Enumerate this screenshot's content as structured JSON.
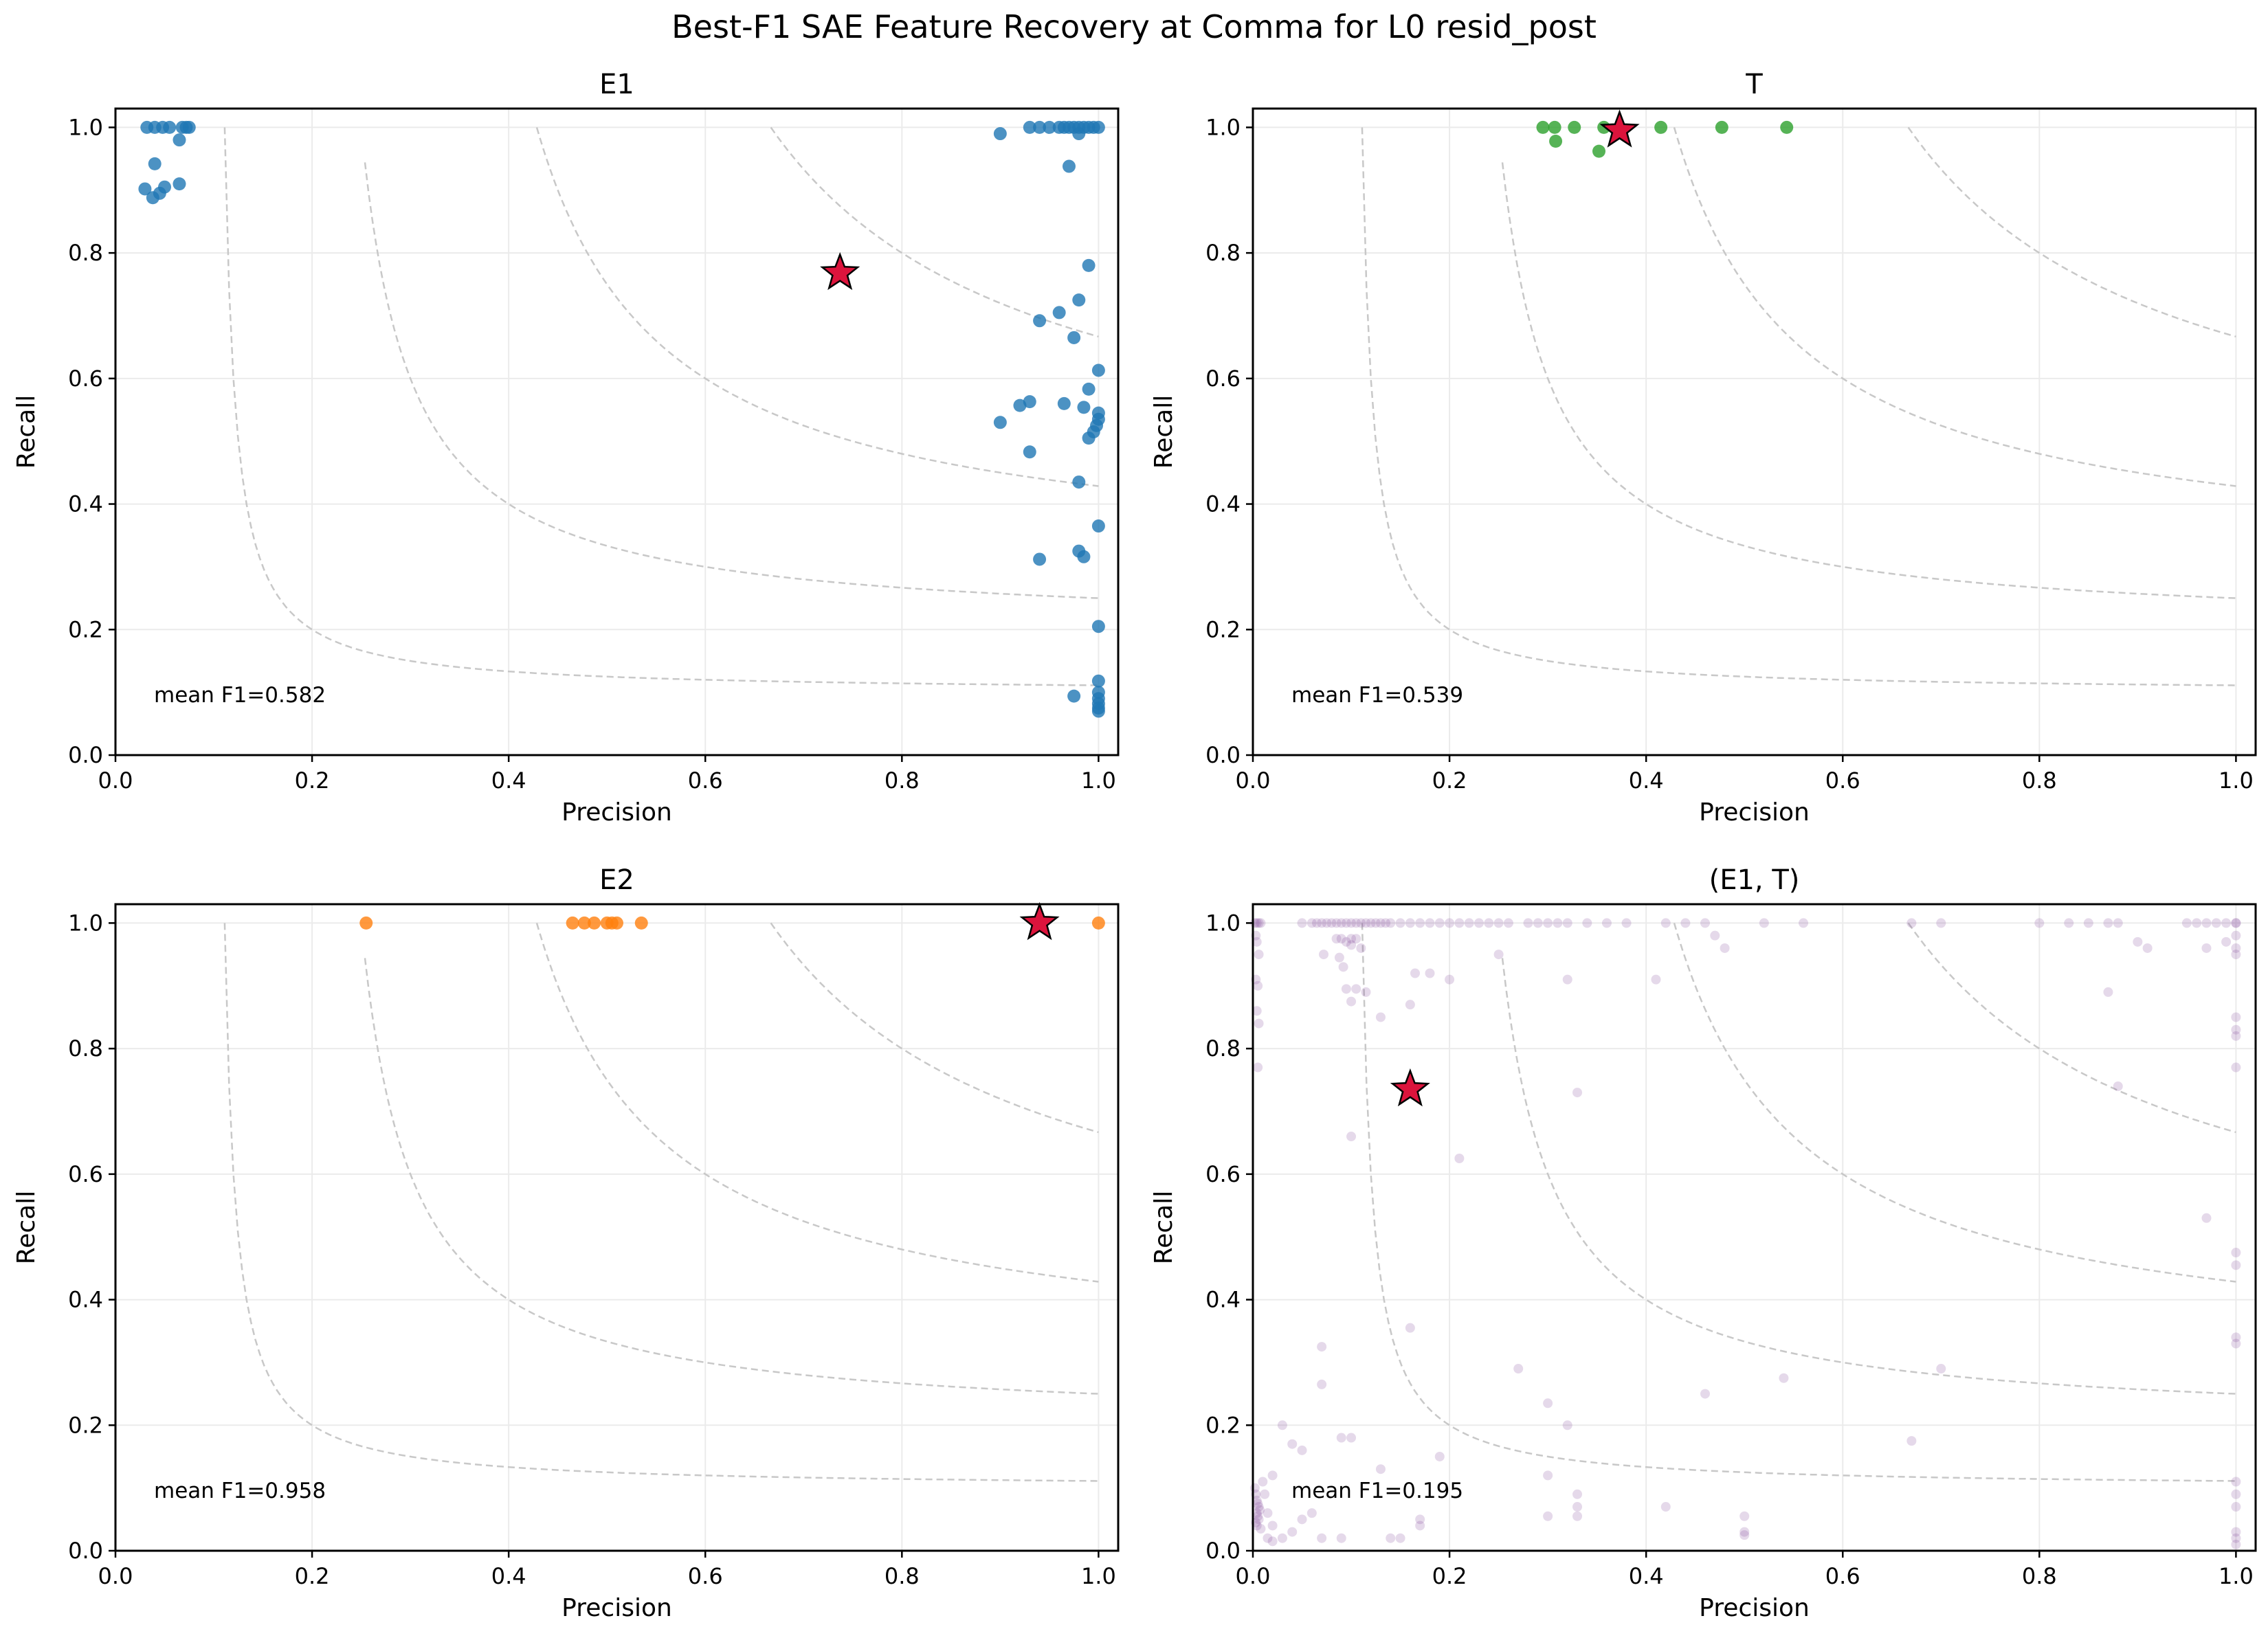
{
  "figure": {
    "title": "Best-F1 SAE Feature Recovery at Comma for L0 resid_post"
  },
  "chart_data": [
    {
      "type": "scatter",
      "title": "E1",
      "xlabel": "Precision",
      "ylabel": "Recall",
      "xlim": [
        0,
        1.02
      ],
      "ylim": [
        0,
        1.03
      ],
      "grid": true,
      "xticks": [
        "0.0",
        "0.2",
        "0.4",
        "0.6",
        "0.8",
        "1.0"
      ],
      "yticks": [
        "0.0",
        "0.2",
        "0.4",
        "0.6",
        "0.8",
        "1.0"
      ],
      "color": "#1f77b4",
      "alpha": 0.8,
      "iso_f1": [
        0.2,
        0.4,
        0.6,
        0.8
      ],
      "annotation": "mean F1=0.582",
      "best": [
        0.737,
        0.768
      ],
      "points": [
        [
          0.032,
          1.0
        ],
        [
          0.04,
          1.0
        ],
        [
          0.048,
          1.0
        ],
        [
          0.055,
          1.0
        ],
        [
          0.068,
          1.0
        ],
        [
          0.072,
          1.0
        ],
        [
          0.075,
          1.0
        ],
        [
          0.065,
          0.98
        ],
        [
          0.04,
          0.942
        ],
        [
          0.03,
          0.902
        ],
        [
          0.038,
          0.888
        ],
        [
          0.045,
          0.895
        ],
        [
          0.05,
          0.905
        ],
        [
          0.065,
          0.91
        ],
        [
          0.9,
          0.99
        ],
        [
          0.93,
          1.0
        ],
        [
          0.94,
          1.0
        ],
        [
          0.95,
          1.0
        ],
        [
          0.96,
          1.0
        ],
        [
          0.965,
          1.0
        ],
        [
          0.97,
          1.0
        ],
        [
          0.975,
          1.0
        ],
        [
          0.98,
          1.0
        ],
        [
          0.985,
          1.0
        ],
        [
          0.99,
          1.0
        ],
        [
          0.995,
          1.0
        ],
        [
          1.0,
          1.0
        ],
        [
          0.98,
          0.99
        ],
        [
          0.97,
          0.938
        ],
        [
          0.99,
          0.78
        ],
        [
          0.98,
          0.725
        ],
        [
          0.96,
          0.705
        ],
        [
          0.94,
          0.692
        ],
        [
          0.975,
          0.665
        ],
        [
          1.0,
          0.613
        ],
        [
          0.99,
          0.583
        ],
        [
          0.93,
          0.563
        ],
        [
          0.92,
          0.557
        ],
        [
          0.965,
          0.56
        ],
        [
          0.985,
          0.554
        ],
        [
          1.0,
          0.545
        ],
        [
          1.0,
          0.535
        ],
        [
          0.998,
          0.525
        ],
        [
          0.995,
          0.515
        ],
        [
          0.99,
          0.505
        ],
        [
          0.9,
          0.53
        ],
        [
          0.93,
          0.483
        ],
        [
          0.98,
          0.435
        ],
        [
          1.0,
          0.365
        ],
        [
          0.98,
          0.325
        ],
        [
          0.94,
          0.312
        ],
        [
          0.985,
          0.316
        ],
        [
          1.0,
          0.205
        ],
        [
          1.0,
          0.118
        ],
        [
          0.975,
          0.094
        ],
        [
          1.0,
          0.1
        ],
        [
          1.0,
          0.09
        ],
        [
          1.0,
          0.082
        ],
        [
          1.0,
          0.075
        ],
        [
          1.0,
          0.07
        ]
      ]
    },
    {
      "type": "scatter",
      "title": "T",
      "xlabel": "Precision",
      "ylabel": "Recall",
      "xlim": [
        0,
        1.02
      ],
      "ylim": [
        0,
        1.03
      ],
      "grid": true,
      "xticks": [
        "0.0",
        "0.2",
        "0.4",
        "0.6",
        "0.8",
        "1.0"
      ],
      "yticks": [
        "0.0",
        "0.2",
        "0.4",
        "0.6",
        "0.8",
        "1.0"
      ],
      "color": "#2ca02c",
      "alpha": 0.8,
      "iso_f1": [
        0.2,
        0.4,
        0.6,
        0.8
      ],
      "annotation": "mean F1=0.539",
      "best": [
        0.373,
        0.995
      ],
      "points": [
        [
          0.295,
          1.0
        ],
        [
          0.307,
          1.0
        ],
        [
          0.327,
          1.0
        ],
        [
          0.357,
          1.0
        ],
        [
          0.415,
          1.0
        ],
        [
          0.477,
          1.0
        ],
        [
          0.543,
          1.0
        ],
        [
          0.308,
          0.978
        ],
        [
          0.352,
          0.962
        ]
      ]
    },
    {
      "type": "scatter",
      "title": "E2",
      "xlabel": "Precision",
      "ylabel": "Recall",
      "xlim": [
        0,
        1.02
      ],
      "ylim": [
        0,
        1.03
      ],
      "grid": true,
      "xticks": [
        "0.0",
        "0.2",
        "0.4",
        "0.6",
        "0.8",
        "1.0"
      ],
      "yticks": [
        "0.0",
        "0.2",
        "0.4",
        "0.6",
        "0.8",
        "1.0"
      ],
      "color": "#ff7f0e",
      "alpha": 0.8,
      "iso_f1": [
        0.2,
        0.4,
        0.6,
        0.8
      ],
      "annotation": "mean F1=0.958",
      "best": [
        0.94,
        1.0
      ],
      "points": [
        [
          0.255,
          1.0
        ],
        [
          0.465,
          1.0
        ],
        [
          0.477,
          1.0
        ],
        [
          0.487,
          1.0
        ],
        [
          0.5,
          1.0
        ],
        [
          0.505,
          1.0
        ],
        [
          0.51,
          1.0
        ],
        [
          0.535,
          1.0
        ],
        [
          1.0,
          1.0
        ]
      ]
    },
    {
      "type": "scatter",
      "title": "(E1, T)",
      "xlabel": "Precision",
      "ylabel": "Recall",
      "xlim": [
        0,
        1.02
      ],
      "ylim": [
        0,
        1.03
      ],
      "grid": true,
      "xticks": [
        "0.0",
        "0.2",
        "0.4",
        "0.6",
        "0.8",
        "1.0"
      ],
      "yticks": [
        "0.0",
        "0.2",
        "0.4",
        "0.6",
        "0.8",
        "1.0"
      ],
      "color": "#7b3f95",
      "alpha": 0.2,
      "iso_f1": [
        0.2,
        0.4,
        0.6,
        0.8
      ],
      "annotation": "mean F1=0.195",
      "best": [
        0.16,
        0.735
      ],
      "points": [
        [
          0.002,
          1.0
        ],
        [
          0.004,
          1.0
        ],
        [
          0.006,
          1.0
        ],
        [
          0.008,
          1.0
        ],
        [
          0.05,
          1.0
        ],
        [
          0.06,
          1.0
        ],
        [
          0.065,
          1.0
        ],
        [
          0.07,
          1.0
        ],
        [
          0.075,
          1.0
        ],
        [
          0.08,
          1.0
        ],
        [
          0.085,
          1.0
        ],
        [
          0.09,
          1.0
        ],
        [
          0.095,
          1.0
        ],
        [
          0.1,
          1.0
        ],
        [
          0.105,
          1.0
        ],
        [
          0.11,
          1.0
        ],
        [
          0.115,
          1.0
        ],
        [
          0.12,
          1.0
        ],
        [
          0.125,
          1.0
        ],
        [
          0.13,
          1.0
        ],
        [
          0.135,
          1.0
        ],
        [
          0.14,
          1.0
        ],
        [
          0.15,
          1.0
        ],
        [
          0.16,
          1.0
        ],
        [
          0.17,
          1.0
        ],
        [
          0.18,
          1.0
        ],
        [
          0.19,
          1.0
        ],
        [
          0.2,
          1.0
        ],
        [
          0.21,
          1.0
        ],
        [
          0.22,
          1.0
        ],
        [
          0.23,
          1.0
        ],
        [
          0.24,
          1.0
        ],
        [
          0.25,
          1.0
        ],
        [
          0.26,
          1.0
        ],
        [
          0.28,
          1.0
        ],
        [
          0.29,
          1.0
        ],
        [
          0.3,
          1.0
        ],
        [
          0.31,
          1.0
        ],
        [
          0.32,
          1.0
        ],
        [
          0.34,
          1.0
        ],
        [
          0.36,
          1.0
        ],
        [
          0.38,
          1.0
        ],
        [
          0.42,
          1.0
        ],
        [
          0.44,
          1.0
        ],
        [
          0.46,
          1.0
        ],
        [
          0.52,
          1.0
        ],
        [
          0.56,
          1.0
        ],
        [
          0.67,
          1.0
        ],
        [
          0.7,
          1.0
        ],
        [
          0.8,
          1.0
        ],
        [
          0.83,
          1.0
        ],
        [
          0.85,
          1.0
        ],
        [
          0.87,
          1.0
        ],
        [
          0.88,
          1.0
        ],
        [
          0.95,
          1.0
        ],
        [
          0.96,
          1.0
        ],
        [
          0.97,
          1.0
        ],
        [
          0.98,
          1.0
        ],
        [
          0.99,
          1.0
        ],
        [
          1.0,
          1.0
        ],
        [
          1.0,
          1.0
        ],
        [
          0.003,
          0.98
        ],
        [
          0.004,
          0.97
        ],
        [
          0.006,
          0.95
        ],
        [
          0.003,
          0.91
        ],
        [
          0.005,
          0.9
        ],
        [
          0.004,
          0.86
        ],
        [
          0.006,
          0.84
        ],
        [
          0.005,
          0.77
        ],
        [
          0.085,
          0.975
        ],
        [
          0.09,
          0.975
        ],
        [
          0.095,
          0.97
        ],
        [
          0.1,
          0.975
        ],
        [
          0.105,
          0.975
        ],
        [
          0.1,
          0.965
        ],
        [
          0.072,
          0.95
        ],
        [
          0.088,
          0.945
        ],
        [
          0.092,
          0.93
        ],
        [
          0.11,
          0.96
        ],
        [
          0.095,
          0.895
        ],
        [
          0.1,
          0.875
        ],
        [
          0.105,
          0.895
        ],
        [
          0.115,
          0.89
        ],
        [
          0.13,
          0.85
        ],
        [
          0.165,
          0.92
        ],
        [
          0.18,
          0.92
        ],
        [
          0.25,
          0.95
        ],
        [
          0.2,
          0.91
        ],
        [
          0.32,
          0.91
        ],
        [
          0.16,
          0.87
        ],
        [
          0.41,
          0.91
        ],
        [
          0.47,
          0.98
        ],
        [
          0.48,
          0.96
        ],
        [
          0.9,
          0.97
        ],
        [
          0.91,
          0.96
        ],
        [
          0.97,
          0.96
        ],
        [
          0.99,
          0.97
        ],
        [
          1.0,
          0.98
        ],
        [
          1.0,
          0.96
        ],
        [
          1.0,
          0.95
        ],
        [
          0.87,
          0.89
        ],
        [
          1.0,
          0.85
        ],
        [
          1.0,
          0.83
        ],
        [
          1.0,
          0.82
        ],
        [
          1.0,
          0.77
        ],
        [
          0.88,
          0.74
        ],
        [
          0.1,
          0.66
        ],
        [
          0.21,
          0.625
        ],
        [
          0.33,
          0.73
        ],
        [
          0.97,
          0.53
        ],
        [
          1.0,
          0.475
        ],
        [
          1.0,
          0.455
        ],
        [
          0.16,
          0.355
        ],
        [
          0.07,
          0.325
        ],
        [
          0.07,
          0.265
        ],
        [
          1.0,
          0.34
        ],
        [
          1.0,
          0.33
        ],
        [
          0.3,
          0.235
        ],
        [
          0.27,
          0.29
        ],
        [
          0.46,
          0.25
        ],
        [
          0.54,
          0.275
        ],
        [
          0.7,
          0.29
        ],
        [
          0.09,
          0.18
        ],
        [
          0.19,
          0.15
        ],
        [
          0.3,
          0.12
        ],
        [
          0.32,
          0.2
        ],
        [
          0.67,
          0.175
        ],
        [
          0.03,
          0.2
        ],
        [
          0.04,
          0.17
        ],
        [
          0.05,
          0.16
        ],
        [
          0.1,
          0.18
        ],
        [
          0.13,
          0.13
        ],
        [
          0.02,
          0.12
        ],
        [
          0.3,
          0.055
        ],
        [
          0.33,
          0.09
        ],
        [
          0.33,
          0.07
        ],
        [
          0.33,
          0.055
        ],
        [
          0.42,
          0.07
        ],
        [
          0.5,
          0.055
        ],
        [
          0.5,
          0.03
        ],
        [
          0.5,
          0.025
        ],
        [
          1.0,
          0.11
        ],
        [
          1.0,
          0.09
        ],
        [
          1.0,
          0.07
        ],
        [
          1.0,
          0.03
        ],
        [
          1.0,
          0.02
        ],
        [
          1.0,
          0.01
        ],
        [
          0.002,
          0.1
        ],
        [
          0.003,
          0.09
        ],
        [
          0.004,
          0.08
        ],
        [
          0.005,
          0.075
        ],
        [
          0.006,
          0.07
        ],
        [
          0.007,
          0.065
        ],
        [
          0.004,
          0.06
        ],
        [
          0.005,
          0.055
        ],
        [
          0.006,
          0.05
        ],
        [
          0.003,
          0.045
        ],
        [
          0.004,
          0.04
        ],
        [
          0.008,
          0.035
        ],
        [
          0.01,
          0.11
        ],
        [
          0.012,
          0.09
        ],
        [
          0.015,
          0.06
        ],
        [
          0.02,
          0.04
        ],
        [
          0.03,
          0.02
        ],
        [
          0.04,
          0.03
        ],
        [
          0.05,
          0.05
        ],
        [
          0.06,
          0.06
        ],
        [
          0.07,
          0.02
        ],
        [
          0.09,
          0.02
        ],
        [
          0.14,
          0.02
        ],
        [
          0.15,
          0.02
        ],
        [
          0.17,
          0.05
        ],
        [
          0.17,
          0.04
        ],
        [
          0.015,
          0.02
        ],
        [
          0.02,
          0.015
        ]
      ]
    }
  ]
}
